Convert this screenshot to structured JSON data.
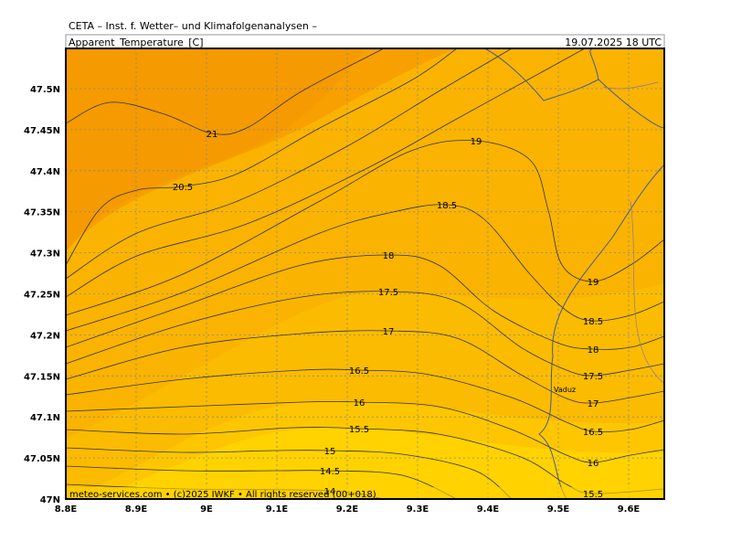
{
  "header": {
    "source": "CETA – Inst. f. Wetter– und Klimafolgenanalysen –",
    "variable": "Apparent_Temperature_[C]",
    "valid": "19.07.2025  18 UTC"
  },
  "axes": {
    "lon_labels": [
      "8.8E",
      "8.9E",
      "9E",
      "9.1E",
      "9.2E",
      "9.3E",
      "9.4E",
      "9.5E",
      "9.6E"
    ],
    "lat_labels": [
      "47N",
      "47.05N",
      "47.1N",
      "47.15N",
      "47.2N",
      "47.25N",
      "47.3N",
      "47.35N",
      "47.4N",
      "47.45N",
      "47.5N"
    ]
  },
  "contour_labels": [
    "21",
    "20.5",
    "19",
    "18.5",
    "18",
    "17.5",
    "17",
    "16.5",
    "16",
    "15.5",
    "15",
    "14.5",
    "14",
    "19",
    "18.5",
    "18",
    "17.5",
    "17",
    "16.5",
    "16",
    "15.5"
  ],
  "place": "Vaduz",
  "footer": "meteo-services.com • (c)2025 IWKF • All rights reserved (00+018)"
}
